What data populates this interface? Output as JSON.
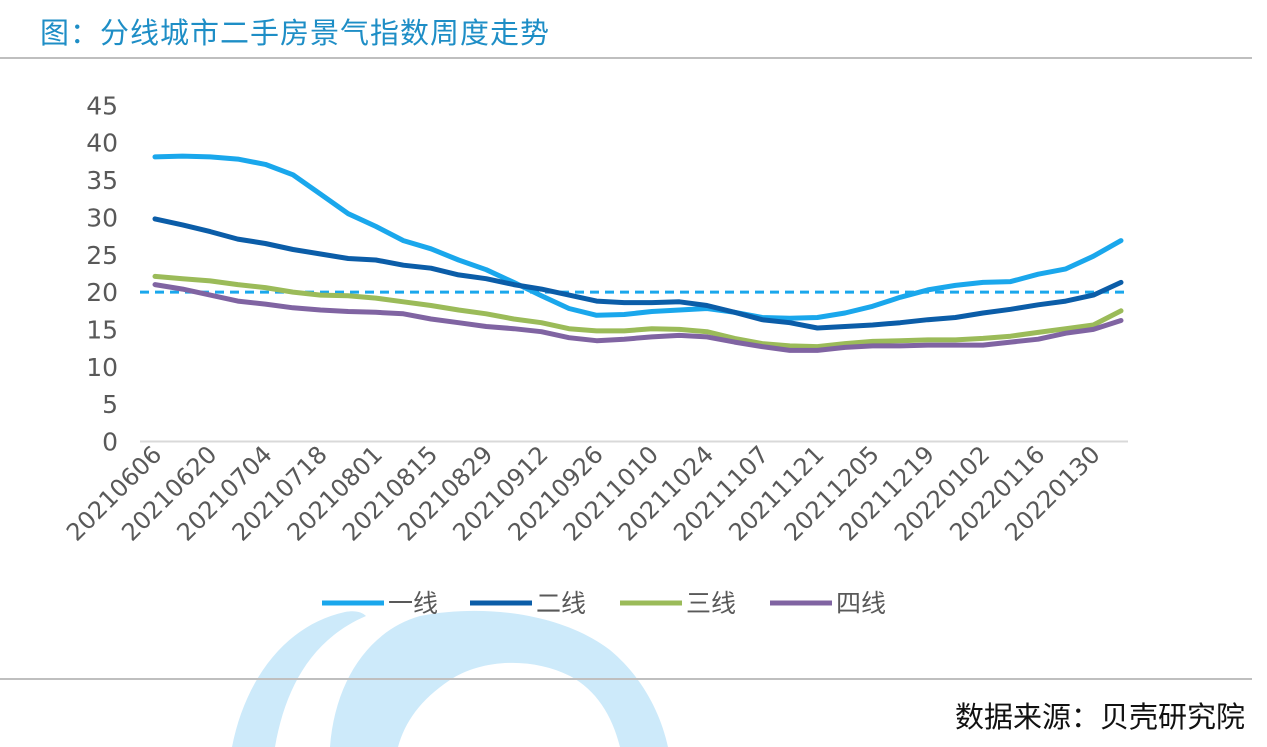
{
  "header": {
    "title": "图：分线城市二手房景气指数周度走势"
  },
  "footer": {
    "source": "数据来源：贝壳研究院"
  },
  "colors": {
    "title": "#1e8ec6",
    "tier1": "#1aa7ec",
    "tier2": "#0b5da8",
    "tier3": "#9bbb59",
    "tier4": "#8064a2",
    "reference_line": "#1aa7ec",
    "watermark": "#cdeafa"
  },
  "chart_data": {
    "type": "line",
    "ylim": [
      0,
      45
    ],
    "yticks": [
      0,
      5,
      10,
      15,
      20,
      25,
      30,
      35,
      40,
      45
    ],
    "x_tick_labels": [
      "20210606",
      "20210620",
      "20210704",
      "20210718",
      "20210801",
      "20210815",
      "20210829",
      "20210912",
      "20210926",
      "20211010",
      "20211024",
      "20211107",
      "20211121",
      "20211205",
      "20211219",
      "20220102",
      "20220116",
      "20220130"
    ],
    "x": [
      "20210606",
      "20210613",
      "20210620",
      "20210627",
      "20210704",
      "20210711",
      "20210718",
      "20210725",
      "20210801",
      "20210808",
      "20210815",
      "20210822",
      "20210829",
      "20210905",
      "20210912",
      "20210919",
      "20210926",
      "20211003",
      "20211010",
      "20211017",
      "20211024",
      "20211031",
      "20211107",
      "20211114",
      "20211121",
      "20211128",
      "20211205",
      "20211212",
      "20211219",
      "20211226",
      "20220102",
      "20220109",
      "20220116",
      "20220123",
      "20220130",
      "20220206"
    ],
    "reference_line": {
      "value": 20,
      "style": "dashed"
    },
    "grid": false,
    "legend_position": "bottom",
    "series": [
      {
        "name": "一线",
        "color_key": "tier1",
        "values": [
          38.1,
          38.2,
          38.1,
          37.8,
          37.1,
          35.7,
          33.1,
          30.5,
          28.8,
          26.9,
          25.8,
          24.3,
          23.0,
          21.3,
          19.5,
          17.8,
          16.9,
          17.0,
          17.4,
          17.6,
          17.8,
          17.3,
          16.6,
          16.5,
          16.6,
          17.2,
          18.1,
          19.3,
          20.3,
          20.9,
          21.3,
          21.4,
          22.4,
          23.1,
          24.8,
          26.9
        ]
      },
      {
        "name": "二线",
        "color_key": "tier2",
        "values": [
          29.8,
          29.0,
          28.1,
          27.1,
          26.5,
          25.7,
          25.1,
          24.5,
          24.3,
          23.6,
          23.2,
          22.3,
          21.8,
          21.0,
          20.4,
          19.6,
          18.8,
          18.6,
          18.6,
          18.7,
          18.2,
          17.3,
          16.3,
          15.9,
          15.2,
          15.4,
          15.6,
          15.9,
          16.3,
          16.6,
          17.2,
          17.7,
          18.3,
          18.8,
          19.6,
          21.3
        ]
      },
      {
        "name": "三线",
        "color_key": "tier3",
        "values": [
          22.1,
          21.8,
          21.5,
          21.0,
          20.6,
          20.0,
          19.6,
          19.5,
          19.2,
          18.7,
          18.2,
          17.6,
          17.1,
          16.4,
          15.9,
          15.1,
          14.8,
          14.8,
          15.1,
          15.0,
          14.7,
          13.8,
          13.1,
          12.8,
          12.7,
          13.1,
          13.4,
          13.5,
          13.6,
          13.6,
          13.8,
          14.1,
          14.6,
          15.1,
          15.6,
          17.5
        ]
      },
      {
        "name": "四线",
        "color_key": "tier4",
        "values": [
          21.0,
          20.4,
          19.6,
          18.8,
          18.4,
          17.9,
          17.6,
          17.4,
          17.3,
          17.1,
          16.4,
          15.9,
          15.4,
          15.1,
          14.7,
          13.9,
          13.5,
          13.7,
          14.0,
          14.2,
          14.0,
          13.3,
          12.7,
          12.2,
          12.2,
          12.6,
          12.8,
          12.8,
          12.9,
          12.9,
          12.9,
          13.3,
          13.7,
          14.5,
          15.0,
          16.2
        ]
      }
    ]
  }
}
